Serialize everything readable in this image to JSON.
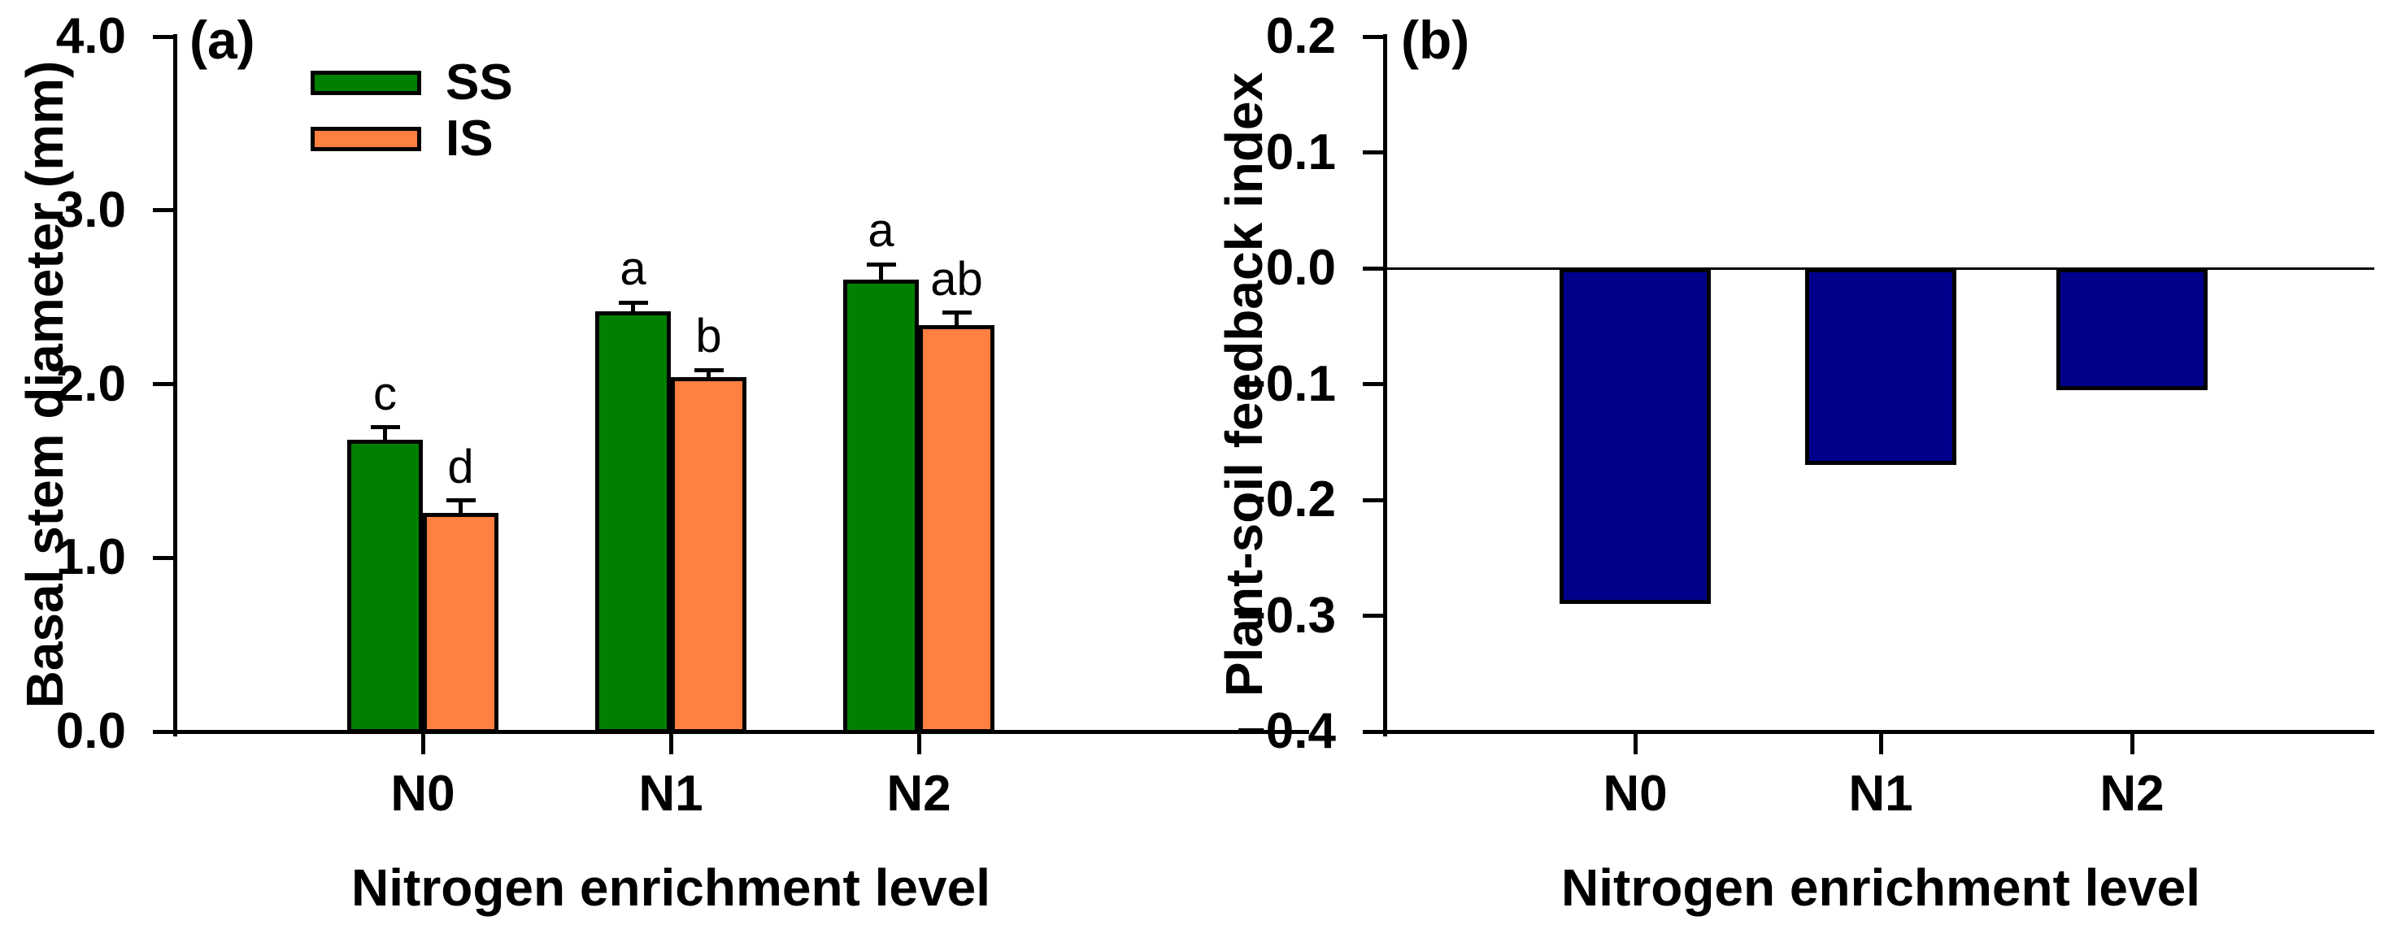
{
  "figure": {
    "background": "#ffffff",
    "ink_color": "#000000"
  },
  "chart_data": [
    {
      "type": "bar",
      "panel_label": "(a)",
      "xlabel": "Nitrogen enrichment level",
      "ylabel": "Basal stem diameter (mm)",
      "categories": [
        "N0",
        "N1",
        "N2"
      ],
      "ylim": [
        0.0,
        4.0
      ],
      "ytick_labels": [
        "4.0",
        "3.0",
        "2.0",
        "1.0",
        "0.0"
      ],
      "grid": false,
      "legend_position": "upper-left-inside",
      "series": [
        {
          "name": "SS",
          "color": "#008000",
          "values": [
            1.68,
            2.42,
            2.6
          ],
          "errors": [
            0.07,
            0.05,
            0.09
          ],
          "sig_letters": [
            "c",
            "a",
            "a"
          ]
        },
        {
          "name": "IS",
          "color": "#FF8040",
          "values": [
            1.26,
            2.04,
            2.34
          ],
          "errors": [
            0.07,
            0.04,
            0.07
          ],
          "sig_letters": [
            "d",
            "b",
            "ab"
          ]
        }
      ]
    },
    {
      "type": "bar",
      "panel_label": "(b)",
      "xlabel": "Nitrogen enrichment level",
      "ylabel": "Plant-soil feedback index",
      "categories": [
        "N0",
        "N1",
        "N2"
      ],
      "ylim": [
        -0.4,
        0.2
      ],
      "ytick_labels": [
        "0.2",
        "0.1",
        "0.0",
        "−0.1",
        "−0.2",
        "−0.3",
        "−0.4"
      ],
      "grid": false,
      "zero_line": true,
      "series": [
        {
          "name": "Plant-soil feedback index",
          "color": "#00008B",
          "values": [
            -0.29,
            -0.17,
            -0.105
          ],
          "errors": null,
          "sig_letters": null
        }
      ]
    }
  ]
}
